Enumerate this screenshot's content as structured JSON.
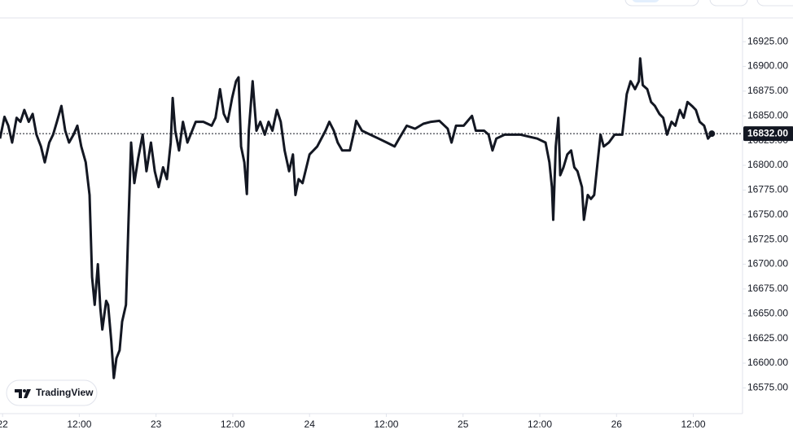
{
  "chart_data": {
    "type": "line",
    "color": "#131722",
    "watermark": "TradingView",
    "last_price": {
      "value": 16832,
      "label": "16832.00"
    },
    "xlim": [
      -0.4,
      115.7
    ],
    "ylim": [
      16549,
      16949
    ],
    "xticks": [
      {
        "value": 0,
        "label": "22"
      },
      {
        "value": 12,
        "label": "12:00"
      },
      {
        "value": 24,
        "label": "23"
      },
      {
        "value": 36,
        "label": "12:00"
      },
      {
        "value": 48,
        "label": "24"
      },
      {
        "value": 60,
        "label": "12:00"
      },
      {
        "value": 72,
        "label": "25"
      },
      {
        "value": 84,
        "label": "12:00"
      },
      {
        "value": 96,
        "label": "26"
      },
      {
        "value": 108,
        "label": "12:00"
      }
    ],
    "yticks": [
      {
        "value": 16575,
        "label": "16575.00"
      },
      {
        "value": 16600,
        "label": "16600.00"
      },
      {
        "value": 16625,
        "label": "16625.00"
      },
      {
        "value": 16650,
        "label": "16650.00"
      },
      {
        "value": 16675,
        "label": "16675.00"
      },
      {
        "value": 16700,
        "label": "16700.00"
      },
      {
        "value": 16725,
        "label": "16725.00"
      },
      {
        "value": 16750,
        "label": "16750.00"
      },
      {
        "value": 16775,
        "label": "16775.00"
      },
      {
        "value": 16800,
        "label": "16800.00"
      },
      {
        "value": 16825,
        "label": "16825.00"
      },
      {
        "value": 16850,
        "label": "16850.00"
      },
      {
        "value": 16875,
        "label": "16875.00"
      },
      {
        "value": 16900,
        "label": "16900.00"
      },
      {
        "value": 16925,
        "label": "16925.00"
      }
    ],
    "x": [
      -0.4,
      0.3,
      0.9,
      1.5,
      2.2,
      2.8,
      3.4,
      4.1,
      4.7,
      5.3,
      6.0,
      6.6,
      7.3,
      7.9,
      8.5,
      9.2,
      9.8,
      10.4,
      11.1,
      11.7,
      12.3,
      13.0,
      13.6,
      14.0,
      14.4,
      14.9,
      15.3,
      15.6,
      16.2,
      16.5,
      17.0,
      17.4,
      17.8,
      18.3,
      18.7,
      19.3,
      19.7,
      20.1,
      20.6,
      21.2,
      21.9,
      22.5,
      23.2,
      23.8,
      24.4,
      25.1,
      25.7,
      26.3,
      26.6,
      27.0,
      27.6,
      28.2,
      28.9,
      30.2,
      31.4,
      32.7,
      33.3,
      34.0,
      34.6,
      35.2,
      35.9,
      36.5,
      36.9,
      37.3,
      37.8,
      38.2,
      38.5,
      39.1,
      39.7,
      40.3,
      41.0,
      41.6,
      42.2,
      42.9,
      43.5,
      44.1,
      44.8,
      45.4,
      45.8,
      46.3,
      46.9,
      48.0,
      49.2,
      50.5,
      51.1,
      51.8,
      52.4,
      53.1,
      54.3,
      55.0,
      55.3,
      56.2,
      57.5,
      58.8,
      60.1,
      61.3,
      62.0,
      63.2,
      64.5,
      65.8,
      67.0,
      68.3,
      69.6,
      70.2,
      70.9,
      72.1,
      73.4,
      74.0,
      75.3,
      76.0,
      76.6,
      77.2,
      78.5,
      81.0,
      83.6,
      84.9,
      85.5,
      85.9,
      86.1,
      86.5,
      86.9,
      87.2,
      87.7,
      88.3,
      88.9,
      89.4,
      89.9,
      90.6,
      90.9,
      91.5,
      92.0,
      92.5,
      93.1,
      93.5,
      94.0,
      94.8,
      95.7,
      96.9,
      97.6,
      98.2,
      98.9,
      99.5,
      99.7,
      100.1,
      100.8,
      101.4,
      102.0,
      102.7,
      103.3,
      103.9,
      104.6,
      105.2,
      105.9,
      106.5,
      107.1,
      107.8,
      108.4,
      109.0,
      109.7,
      110.3,
      110.9
    ],
    "values": [
      16827,
      16849,
      16840,
      16823,
      16848,
      16844,
      16856,
      16844,
      16852,
      16831,
      16819,
      16803,
      16823,
      16831,
      16844,
      16860,
      16835,
      16823,
      16831,
      16840,
      16819,
      16803,
      16770,
      16687,
      16659,
      16700,
      16655,
      16634,
      16663,
      16659,
      16622,
      16585,
      16605,
      16613,
      16642,
      16659,
      16745,
      16823,
      16782,
      16807,
      16831,
      16794,
      16823,
      16794,
      16778,
      16798,
      16786,
      16823,
      16868,
      16835,
      16815,
      16844,
      16823,
      16844,
      16844,
      16840,
      16848,
      16877,
      16852,
      16844,
      16868,
      16885,
      16889,
      16819,
      16803,
      16771,
      16835,
      16885,
      16835,
      16844,
      16831,
      16844,
      16835,
      16856,
      16844,
      16815,
      16794,
      16811,
      16770,
      16786,
      16782,
      16811,
      16819,
      16835,
      16844,
      16835,
      16823,
      16815,
      16815,
      16835,
      16845,
      16835,
      16831,
      16827,
      16823,
      16819,
      16827,
      16840,
      16837,
      16842,
      16844,
      16845,
      16837,
      16823,
      16840,
      16840,
      16850,
      16835,
      16835,
      16831,
      16815,
      16827,
      16831,
      16831,
      16827,
      16823,
      16803,
      16778,
      16745,
      16819,
      16848,
      16790,
      16798,
      16811,
      16815,
      16798,
      16794,
      16778,
      16745,
      16770,
      16766,
      16770,
      16807,
      16831,
      16819,
      16823,
      16831,
      16831,
      16872,
      16885,
      16877,
      16885,
      16908,
      16881,
      16877,
      16864,
      16860,
      16852,
      16848,
      16831,
      16844,
      16840,
      16856,
      16848,
      16864,
      16860,
      16856,
      16844,
      16840,
      16827,
      16832
    ]
  }
}
